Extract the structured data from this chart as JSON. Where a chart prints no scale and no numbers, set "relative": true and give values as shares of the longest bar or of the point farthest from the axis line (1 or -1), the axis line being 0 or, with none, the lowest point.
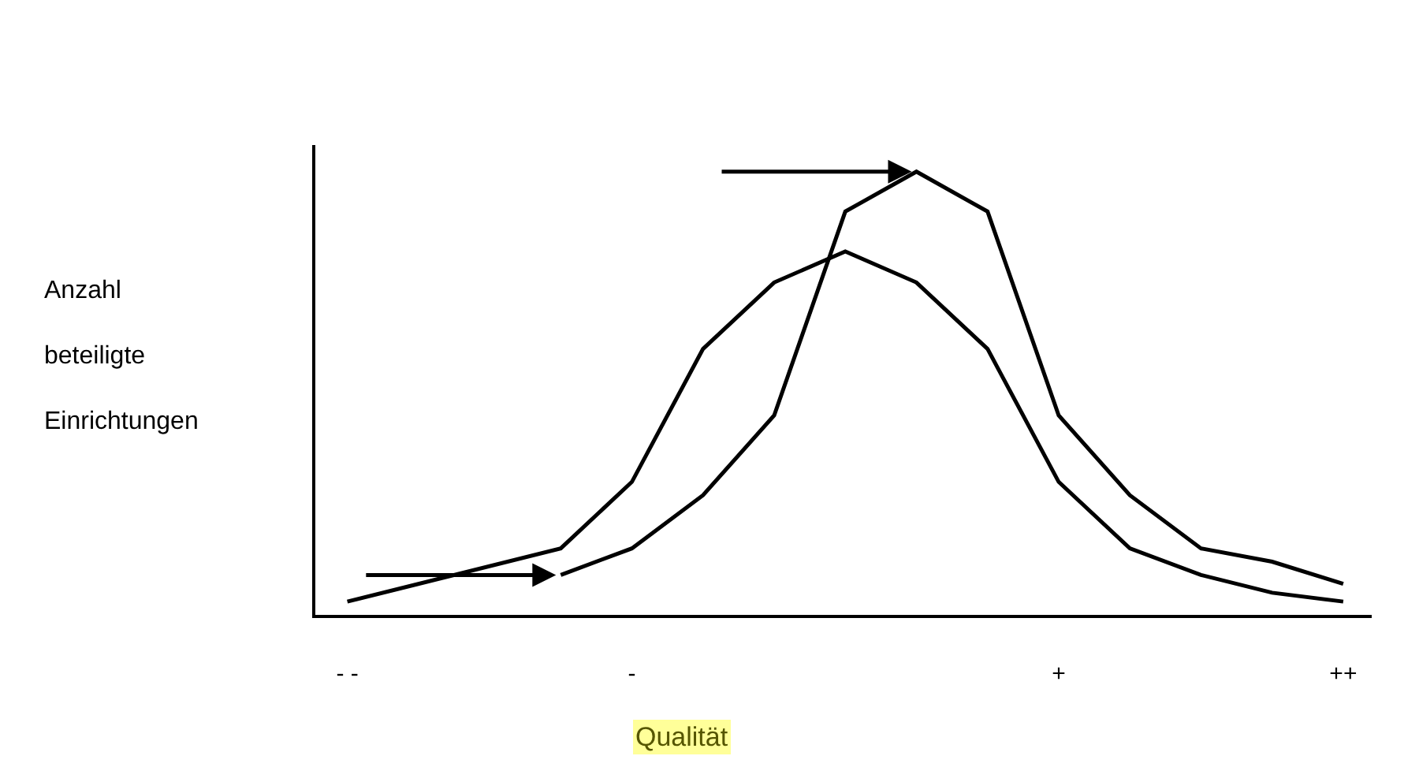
{
  "chart_data": {
    "type": "line",
    "relative": true,
    "xlabel": "Qualität",
    "ylabel": "Anzahl beteiligte Einrichtungen",
    "categories": [
      "- -",
      null,
      null,
      null,
      "-",
      null,
      null,
      null,
      null,
      null,
      "+",
      null,
      null,
      null,
      "++"
    ],
    "series": [
      {
        "color": "#000000",
        "values": [
          0.03,
          null,
          null,
          0.15,
          0.3,
          0.6,
          0.75,
          0.82,
          0.75,
          0.6,
          0.3,
          0.15,
          0.09,
          0.05,
          0.03
        ]
      },
      {
        "color": "#000000",
        "values": [
          null,
          null,
          null,
          0.09,
          0.15,
          0.27,
          0.45,
          0.91,
          1,
          0.91,
          0.45,
          0.27,
          0.15,
          0.12,
          0.07
        ]
      }
    ],
    "marker": "none",
    "line_style": "solid"
  }
}
